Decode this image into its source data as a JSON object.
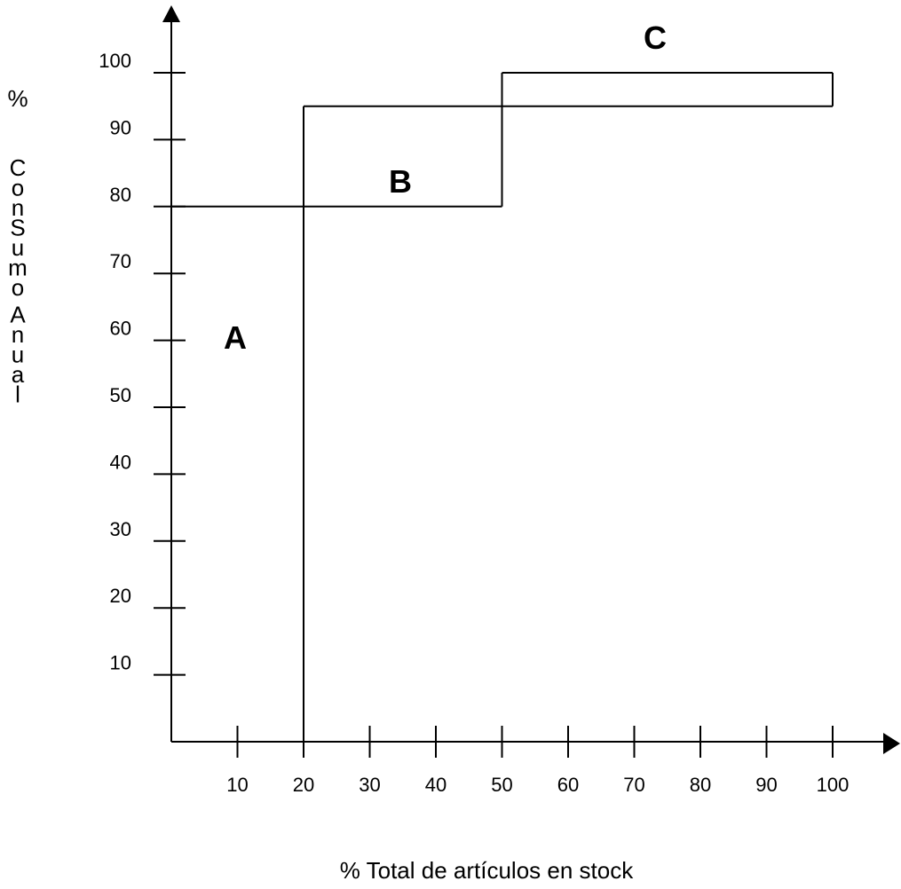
{
  "chart_data": {
    "type": "line",
    "xlabel": "% Total de artículos en stock",
    "ylabel": "% ConSumo Anual",
    "x_ticks": [
      "10",
      "20",
      "30",
      "40",
      "50",
      "60",
      "70",
      "80",
      "90",
      "100"
    ],
    "y_ticks": [
      "10",
      "20",
      "30",
      "40",
      "50",
      "60",
      "70",
      "80",
      "90",
      "100"
    ],
    "xlim": [
      0,
      100
    ],
    "ylim": [
      0,
      100
    ],
    "grid": false,
    "zones": [
      {
        "label": "A",
        "x_range": [
          0,
          20
        ],
        "y": 80
      },
      {
        "label": "B",
        "x_range": [
          20,
          50
        ],
        "y_range": [
          80,
          95
        ]
      },
      {
        "label": "C",
        "x_range": [
          50,
          100
        ],
        "y_range": [
          95,
          100
        ]
      }
    ],
    "step_lines": [
      {
        "x": [
          0,
          50
        ],
        "y": [
          80,
          80
        ]
      },
      {
        "x": [
          20,
          20
        ],
        "y": [
          0,
          95
        ]
      },
      {
        "x": [
          20,
          100
        ],
        "y": [
          95,
          95
        ]
      },
      {
        "x": [
          50,
          50
        ],
        "y": [
          80,
          100
        ]
      },
      {
        "x": [
          50,
          100
        ],
        "y": [
          100,
          100
        ]
      },
      {
        "x": [
          100,
          100
        ],
        "y": [
          95,
          100
        ]
      }
    ]
  }
}
